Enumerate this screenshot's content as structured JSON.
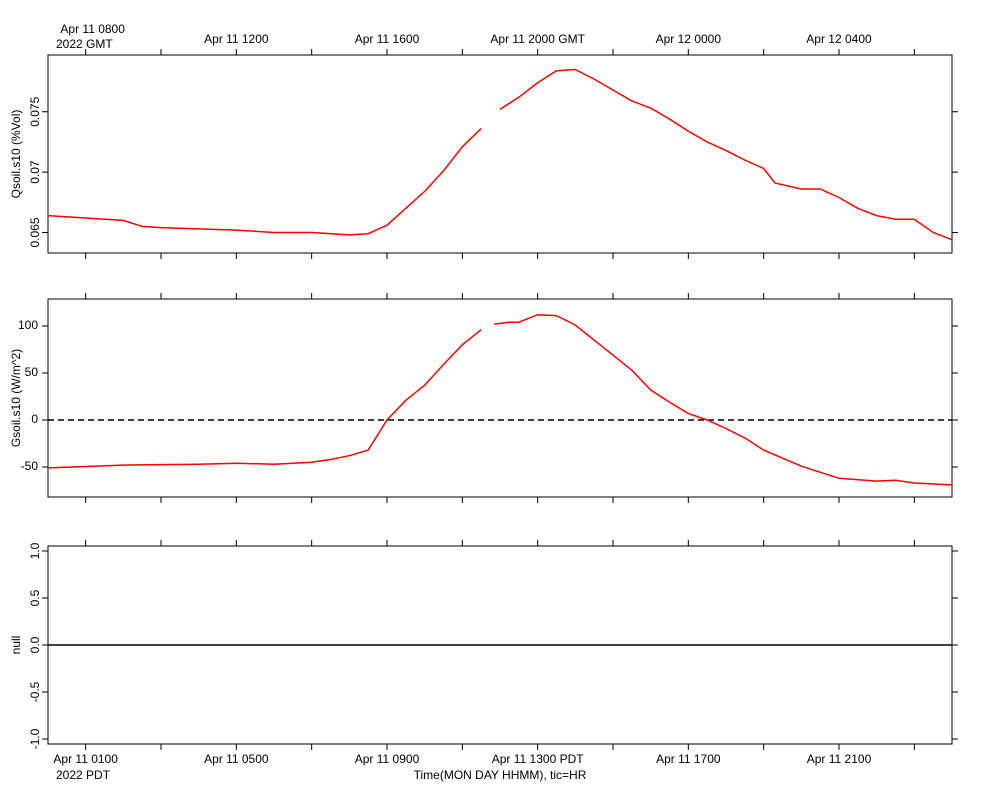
{
  "chart_data": [
    {
      "type": "line",
      "ylabel": "Qsoil.s10 (%Vol)",
      "xlim": [
        0,
        24
      ],
      "ylim": [
        0.0633,
        0.0797
      ],
      "yticks": [
        0.065,
        0.07,
        0.075
      ],
      "rotated_ticks": true,
      "xticks": [
        {
          "value": 1,
          "label": "Apr 11 0800"
        },
        {
          "value": 5,
          "label": "Apr 11 1200"
        },
        {
          "value": 9,
          "label": "Apr 11 1600"
        },
        {
          "value": 13,
          "label": "Apr 11 2000 GMT"
        },
        {
          "value": 17,
          "label": "Apr 12 0000"
        },
        {
          "value": 21,
          "label": "Apr 12 0400"
        }
      ],
      "minor_xticks": [
        3,
        7,
        11,
        15,
        19,
        23
      ],
      "xyear": "2022 GMT",
      "x": [
        0,
        1,
        2,
        2.5,
        3,
        4,
        5,
        6,
        7,
        8,
        8.5,
        9,
        9.5,
        10,
        10.5,
        11,
        11.5,
        11.7,
        12,
        12.5,
        13,
        13.5,
        14,
        14.5,
        15,
        15.5,
        16,
        16.5,
        17,
        17.5,
        18,
        18.5,
        19,
        19.3,
        20,
        20.5,
        21,
        21.5,
        22,
        22.5,
        23,
        23.5,
        24
      ],
      "series": [
        {
          "name": "Qsoil.s10",
          "color": "#ff0000",
          "values": [
            0.0664,
            0.0662,
            0.066,
            0.0655,
            0.0654,
            0.0653,
            0.0652,
            0.065,
            0.065,
            0.0648,
            0.0649,
            0.0656,
            0.067,
            0.0684,
            0.0701,
            0.0721,
            0.0736,
            null,
            0.0752,
            0.0762,
            0.0774,
            0.0784,
            0.0785,
            0.0777,
            0.0768,
            0.0759,
            0.0753,
            0.0744,
            0.0734,
            0.0725,
            0.0718,
            0.071,
            0.0703,
            0.0691,
            0.0686,
            0.0686,
            0.0679,
            0.067,
            0.0664,
            0.0661,
            0.0661,
            0.065,
            0.0644
          ]
        }
      ]
    },
    {
      "type": "line",
      "ylabel": "Gsoil.s10 (W/m^2)",
      "xlim": [
        0,
        24
      ],
      "ylim": [
        -81.9,
        128.7
      ],
      "yticks": [
        -50,
        0,
        50,
        100
      ],
      "rotated_ticks": false,
      "hline": 0,
      "x": [
        0,
        2,
        4,
        5,
        6,
        7,
        7.5,
        8,
        8.5,
        9,
        9.5,
        10,
        10.5,
        11,
        11.5,
        11.7,
        11.85,
        12.25,
        12.5,
        13,
        13.5,
        14,
        14.5,
        15,
        15.5,
        16,
        16.5,
        17,
        17.5,
        18,
        18.5,
        19,
        20,
        21,
        22,
        22.5,
        23,
        24
      ],
      "series": [
        {
          "name": "Gsoil.s10",
          "color": "#ff0000",
          "values": [
            -51,
            -48,
            -47,
            -46,
            -47,
            -45,
            -42,
            -38,
            -32,
            0,
            21,
            37,
            59,
            80,
            96,
            null,
            102,
            104,
            104,
            112,
            111,
            101,
            85,
            69,
            53,
            32,
            19,
            7,
            0,
            -9,
            -19,
            -32,
            -49,
            -62,
            -65,
            -64,
            -67,
            -69
          ]
        }
      ]
    },
    {
      "type": "line",
      "ylabel": "null",
      "xlim": [
        0,
        24
      ],
      "ylim": [
        -1.053,
        1.053
      ],
      "rotated_ticks": true,
      "yticks": [
        {
          "value": -1,
          "label": "-1.0"
        },
        {
          "value": -0.5,
          "label": "-0.5"
        },
        {
          "value": 0,
          "label": "0.0"
        },
        {
          "value": 0.5,
          "label": "0.5"
        },
        {
          "value": 1,
          "label": "1.0"
        }
      ],
      "xticks": [
        {
          "value": 1,
          "label": "Apr 11 0100"
        },
        {
          "value": 5,
          "label": "Apr 11 0500"
        },
        {
          "value": 9,
          "label": "Apr 11 0900"
        },
        {
          "value": 13,
          "label": "Apr 11 1300 PDT"
        },
        {
          "value": 17,
          "label": "Apr 11 1700"
        },
        {
          "value": 21,
          "label": "Apr 11 2100"
        }
      ],
      "minor_xticks": [
        3,
        7,
        11,
        15,
        19,
        23
      ],
      "xyear": "2022 PDT",
      "xlabel": "Time(MON DAY HHMM), tic=HR",
      "x": [
        0,
        24
      ],
      "series": [
        {
          "name": "null",
          "color": "#000000",
          "values": [
            0,
            0
          ]
        }
      ]
    }
  ]
}
